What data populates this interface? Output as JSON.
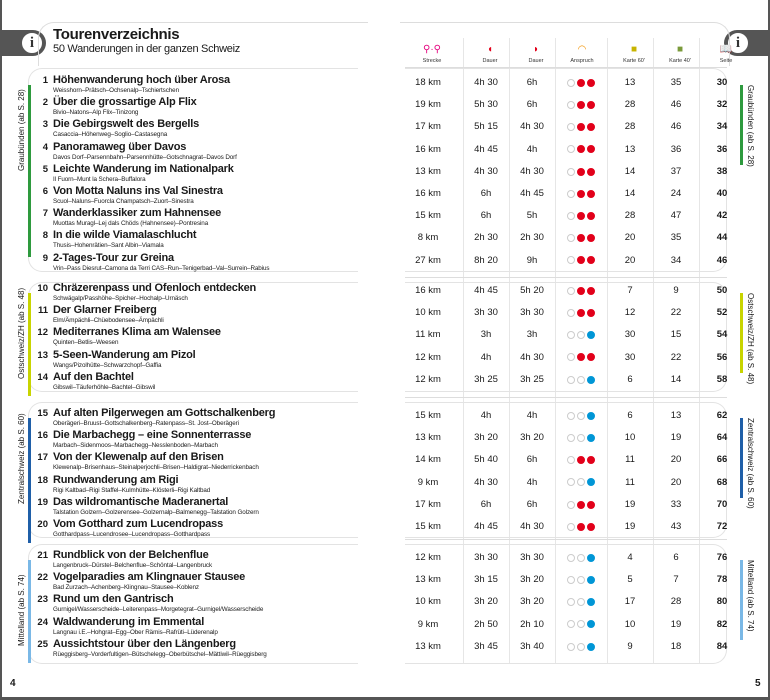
{
  "header": {
    "title": "Tourenverzeichnis",
    "subtitle": "50 Wanderungen in der ganzen Schweiz"
  },
  "info_icon": "info-icon",
  "columns": [
    {
      "label": "Strecke",
      "icon": "route-pins-icon",
      "color": "#e5007e"
    },
    {
      "label": "Dauer",
      "icon": "duration-forward-icon",
      "color": "#e2001a"
    },
    {
      "label": "Dauer",
      "icon": "duration-backward-icon",
      "color": "#e2001a"
    },
    {
      "label": "Anspruch",
      "icon": "difficulty-icon",
      "color": "#f39200"
    },
    {
      "label": "Karte 60'",
      "icon": "map-icon",
      "color": "#c8b400"
    },
    {
      "label": "Karte 40'",
      "icon": "map-icon",
      "color": "#7a9a3a"
    },
    {
      "label": "Seite",
      "icon": "book-icon",
      "color": "#555555"
    }
  ],
  "colors": {
    "hard": "#e2001a",
    "easy": "#0096d6"
  },
  "sections": [
    {
      "label": "Graubünden (ab S. 28)",
      "color": "#2e9a3e",
      "tours": [
        {
          "num": "1",
          "title": "Höhenwanderung hoch über Arosa",
          "route": "Weisshorn–Prätsch–Ochsenalp–Tschiertschen",
          "strecke": "18 km",
          "dauer1": "4h 30",
          "dauer2": "6h",
          "anspruch": 2,
          "karte1": "13",
          "karte2": "35",
          "seite": "30"
        },
        {
          "num": "2",
          "title": "Über die grossartige Alp Flix",
          "route": "Bivio–Natons–Alp Flix–Tinizong",
          "strecke": "19 km",
          "dauer1": "5h 30",
          "dauer2": "6h",
          "anspruch": 2,
          "karte1": "28",
          "karte2": "46",
          "seite": "32"
        },
        {
          "num": "3",
          "title": "Die Gebirgswelt des Bergells",
          "route": "Casaccia–Höhenweg–Soglio–Castasegna",
          "strecke": "17 km",
          "dauer1": "5h 15",
          "dauer2": "4h 30",
          "anspruch": 2,
          "karte1": "28",
          "karte2": "46",
          "seite": "34"
        },
        {
          "num": "4",
          "title": "Panoramaweg über Davos",
          "route": "Davos Dorf–Parsennbahn–Parsennhütte–Gotschnagrat–Davos Dorf",
          "strecke": "16 km",
          "dauer1": "4h 45",
          "dauer2": "4h",
          "anspruch": 2,
          "karte1": "13",
          "karte2": "36",
          "seite": "36"
        },
        {
          "num": "5",
          "title": "Leichte Wanderung im Nationalpark",
          "route": "Il Fuorn–Munt la Schera–Buffalora",
          "strecke": "13 km",
          "dauer1": "4h 30",
          "dauer2": "4h 30",
          "anspruch": 2,
          "karte1": "14",
          "karte2": "37",
          "seite": "38"
        },
        {
          "num": "6",
          "title": "Von Motta Naluns ins Val Sinestra",
          "route": "Scuol–Naluns–Fuorcla Champatsch–Zuort–Sinestra",
          "strecke": "16 km",
          "dauer1": "6h",
          "dauer2": "4h 45",
          "anspruch": 2,
          "karte1": "14",
          "karte2": "24",
          "seite": "40"
        },
        {
          "num": "7",
          "title": "Wanderklassiker zum Hahnensee",
          "route": "Muottas Muragl–Lej dals Chöds (Hahnensee)–Pontresina",
          "strecke": "15 km",
          "dauer1": "6h",
          "dauer2": "5h",
          "anspruch": 2,
          "karte1": "28",
          "karte2": "47",
          "seite": "42"
        },
        {
          "num": "8",
          "title": "In die wilde Viamalaschlucht",
          "route": "Thusis–Hohenrätien–Sant Albin–Viamala",
          "strecke": "8 km",
          "dauer1": "2h 30",
          "dauer2": "2h 30",
          "anspruch": 2,
          "karte1": "20",
          "karte2": "35",
          "seite": "44"
        },
        {
          "num": "9",
          "title": "2-Tages-Tour zur Greina",
          "route": "Vrin–Pass Diesrut–Camona da Terri CAS–Run–Tenigerbad–Val–Surrein–Rabius",
          "strecke": "27 km",
          "dauer1": "8h 20",
          "dauer2": "9h",
          "anspruch": 2,
          "karte1": "20",
          "karte2": "34",
          "seite": "46"
        }
      ]
    },
    {
      "label": "Ostschweiz/ZH (ab S. 48)",
      "color": "#c8d400",
      "tours": [
        {
          "num": "10",
          "title": "Chräzerenpass und Ofenloch entdecken",
          "route": "Schwägalp/Passhöhe–Spicher–Hochalp–Urnäsch",
          "strecke": "16 km",
          "dauer1": "4h 45",
          "dauer2": "5h 20",
          "anspruch": 2,
          "karte1": "7",
          "karte2": "9",
          "seite": "50"
        },
        {
          "num": "11",
          "title": "Der Glarner Freiberg",
          "route": "Elm/Ämpächli–Chüebodensee–Ämpächli",
          "strecke": "10 km",
          "dauer1": "3h 30",
          "dauer2": "3h 30",
          "anspruch": 2,
          "karte1": "12",
          "karte2": "22",
          "seite": "52"
        },
        {
          "num": "12",
          "title": "Mediterranes Klima am Walensee",
          "route": "Quinten–Betlis–Weesen",
          "strecke": "11 km",
          "dauer1": "3h",
          "dauer2": "3h",
          "anspruch": 1,
          "karte1": "30",
          "karte2": "15",
          "seite": "54"
        },
        {
          "num": "13",
          "title": "5-Seen-Wanderung am Pizol",
          "route": "Wangs/Pizolhütte–Schwarzchopf–Gaffia",
          "strecke": "12 km",
          "dauer1": "4h",
          "dauer2": "4h 30",
          "anspruch": 2,
          "karte1": "30",
          "karte2": "22",
          "seite": "56"
        },
        {
          "num": "14",
          "title": "Auf den Bachtel",
          "route": "Gibswil–Täuferhöhle–Bachtel–Gibswil",
          "strecke": "12 km",
          "dauer1": "3h 25",
          "dauer2": "3h 25",
          "anspruch": 1,
          "karte1": "6",
          "karte2": "14",
          "seite": "58"
        }
      ]
    },
    {
      "label": "Zentralschweiz (ab S. 60)",
      "color": "#1f5fa8",
      "tours": [
        {
          "num": "15",
          "title": "Auf alten Pilgerwegen am Gottschalkenberg",
          "route": "Oberägeri–Bruust–Gottschalkenberg–Ratenpass–St. Jost–Oberägeri",
          "strecke": "15 km",
          "dauer1": "4h",
          "dauer2": "4h",
          "anspruch": 1,
          "karte1": "6",
          "karte2": "13",
          "seite": "62"
        },
        {
          "num": "16",
          "title": "Die Marbachegg – eine Sonnenterrasse",
          "route": "Marbach–Sidenmoos–Marbachegg–Nesslenboden–Marbach",
          "strecke": "13 km",
          "dauer1": "3h 20",
          "dauer2": "3h 20",
          "anspruch": 1,
          "karte1": "10",
          "karte2": "19",
          "seite": "64"
        },
        {
          "num": "17",
          "title": "Von der Klewenalp auf den Brisen",
          "route": "Klewenalp–Brisenhaus–Steinalperjochli–Brisen–Haldigrat–Niederrickenbach",
          "strecke": "14 km",
          "dauer1": "5h 40",
          "dauer2": "6h",
          "anspruch": 2,
          "karte1": "11",
          "karte2": "20",
          "seite": "66"
        },
        {
          "num": "18",
          "title": "Rundwanderung am Rigi",
          "route": "Rigi Kaltbad–Rigi Staffel–Kulmhütte–Klösterli–Rigi Kaltbad",
          "strecke": "9 km",
          "dauer1": "4h 30",
          "dauer2": "4h",
          "anspruch": 1,
          "karte1": "11",
          "karte2": "20",
          "seite": "68"
        },
        {
          "num": "19",
          "title": "Das wildromantische Maderanertal",
          "route": "Talstation Golzern–Golzerensee–Golzernalp–Balmenegg–Talstation Golzern",
          "strecke": "17 km",
          "dauer1": "6h",
          "dauer2": "6h",
          "anspruch": 2,
          "karte1": "19",
          "karte2": "33",
          "seite": "70"
        },
        {
          "num": "20",
          "title": "Vom Gotthard zum Lucendropass",
          "route": "Gotthardpass–Lucendrosee–Lucendropass–Gotthardpass",
          "strecke": "15 km",
          "dauer1": "4h 45",
          "dauer2": "4h 30",
          "anspruch": 2,
          "karte1": "19",
          "karte2": "43",
          "seite": "72"
        }
      ]
    },
    {
      "label": "Mittelland (ab S. 74)",
      "color": "#7ab8e6",
      "tours": [
        {
          "num": "21",
          "title": "Rundblick von der Belchenflue",
          "route": "Langenbruck–Dürstel–Belchenflue–Schöntal–Langenbruck",
          "strecke": "12 km",
          "dauer1": "3h 30",
          "dauer2": "3h 30",
          "anspruch": 1,
          "karte1": "4",
          "karte2": "6",
          "seite": "76"
        },
        {
          "num": "22",
          "title": "Vogelparadies am Klingnauer Stausee",
          "route": "Bad Zurzach–Achenberg–Klingnau–Stausee–Koblenz",
          "strecke": "13 km",
          "dauer1": "3h 15",
          "dauer2": "3h 20",
          "anspruch": 1,
          "karte1": "5",
          "karte2": "7",
          "seite": "78"
        },
        {
          "num": "23",
          "title": "Rund um den Gantrisch",
          "route": "Gurnigel/Wasserscheide–Leiterenpass–Morgetegrat–Gurnigel/Wasserscheide",
          "strecke": "10 km",
          "dauer1": "3h 20",
          "dauer2": "3h 20",
          "anspruch": 1,
          "karte1": "17",
          "karte2": "28",
          "seite": "80"
        },
        {
          "num": "24",
          "title": "Waldwanderung im Emmental",
          "route": "Langnau i.E.–Hohgrat–Egg–Ober Rämis–Rafrüti–Lüderenalp",
          "strecke": "9 km",
          "dauer1": "2h 50",
          "dauer2": "2h 10",
          "anspruch": 1,
          "karte1": "10",
          "karte2": "19",
          "seite": "82"
        },
        {
          "num": "25",
          "title": "Aussichtstour über den Längenberg",
          "route": "Rüeggisberg–Vorderfultigen–Bütschelegg–Oberbütschel–Mättiwil–Rüeggisberg",
          "strecke": "13 km",
          "dauer1": "3h 45",
          "dauer2": "3h 40",
          "anspruch": 1,
          "karte1": "9",
          "karte2": "18",
          "seite": "84"
        }
      ]
    }
  ],
  "page_numbers": {
    "left": "4",
    "right": "5"
  }
}
